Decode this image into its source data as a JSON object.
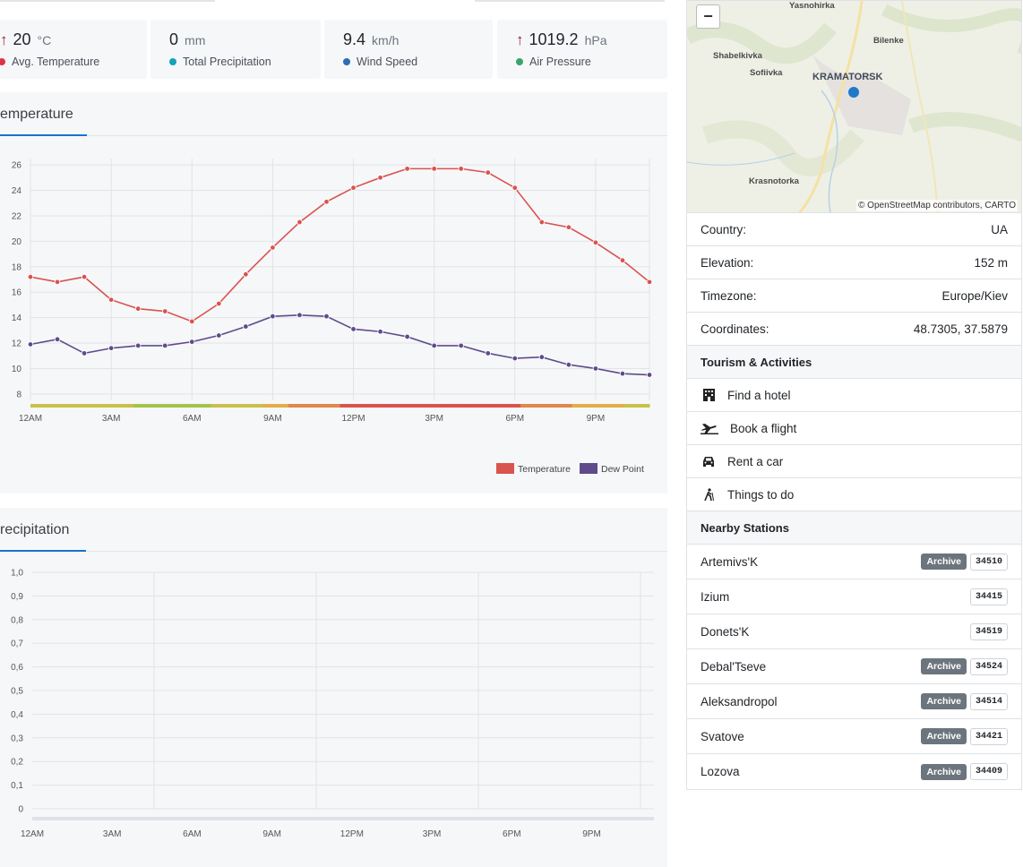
{
  "stats": [
    {
      "arrow": "↑",
      "value": "20",
      "unit": "°C",
      "label": "Avg. Temperature",
      "color": "#dc3545"
    },
    {
      "arrow": "",
      "value": "0",
      "unit": "mm",
      "label": "Total Precipitation",
      "color": "#17a2b8"
    },
    {
      "arrow": "",
      "value": "9.4",
      "unit": "km/h",
      "label": "Wind Speed",
      "color": "#2c6eb5"
    },
    {
      "arrow": "↑",
      "value": "1019.2",
      "unit": "hPa",
      "label": "Air Pressure",
      "color": "#3aa56b"
    }
  ],
  "temperature_panel": {
    "title": "emperature"
  },
  "precipitation_panel": {
    "title": "recipitation"
  },
  "chart_data": [
    {
      "type": "line",
      "title": "Temperature",
      "x": [
        "12AM",
        "1AM",
        "2AM",
        "3AM",
        "4AM",
        "5AM",
        "6AM",
        "7AM",
        "8AM",
        "9AM",
        "10AM",
        "11AM",
        "12PM",
        "1PM",
        "2PM",
        "3PM",
        "4PM",
        "5PM",
        "6PM",
        "7PM",
        "8PM",
        "9PM",
        "10PM",
        "11PM"
      ],
      "xtick_labels": [
        "12AM",
        "3AM",
        "6AM",
        "9AM",
        "12PM",
        "3PM",
        "6PM",
        "9PM"
      ],
      "yticks": [
        8,
        10,
        12,
        14,
        16,
        18,
        20,
        22,
        24,
        26
      ],
      "ylim": [
        7.5,
        26.5
      ],
      "series": [
        {
          "name": "Temperature",
          "color": "#d9534f",
          "values": [
            17.2,
            16.8,
            17.2,
            15.4,
            14.7,
            14.5,
            13.7,
            15.1,
            17.4,
            19.5,
            21.5,
            23.1,
            24.2,
            25.0,
            25.7,
            25.7,
            25.7,
            25.4,
            24.2,
            21.5,
            21.1,
            19.9,
            18.5,
            16.8
          ]
        },
        {
          "name": "Dew Point",
          "color": "#5e4b8b",
          "values": [
            11.9,
            12.3,
            11.2,
            11.6,
            11.8,
            11.8,
            12.1,
            12.6,
            13.3,
            14.1,
            14.2,
            14.1,
            13.1,
            12.9,
            12.5,
            11.8,
            11.8,
            11.2,
            10.8,
            10.9,
            10.3,
            10.0,
            9.6,
            9.5
          ]
        }
      ],
      "legend": [
        "Temperature",
        "Dew Point"
      ],
      "legend_position": "bottom-right"
    },
    {
      "type": "bar",
      "title": "Precipitation",
      "xtick_labels": [
        "12AM",
        "3AM",
        "6AM",
        "9AM",
        "12PM",
        "3PM",
        "6PM",
        "9PM"
      ],
      "yticks": [
        "0",
        "0,1",
        "0,2",
        "0,3",
        "0,4",
        "0,5",
        "0,6",
        "0,7",
        "0,8",
        "0,9",
        "1,0"
      ],
      "ylim": [
        0,
        1
      ],
      "values": [
        0,
        0,
        0,
        0,
        0,
        0,
        0,
        0,
        0,
        0,
        0,
        0,
        0,
        0,
        0,
        0,
        0,
        0,
        0,
        0,
        0,
        0,
        0,
        0
      ]
    }
  ],
  "map": {
    "zoom_out": "−",
    "places": {
      "yasnohirka": "Yasnohirka",
      "bilenke": "Bilenke",
      "shabelkivka": "Shabelkivka",
      "sofiivka": "Sofiivka",
      "kramatorsk": "KRAMATORSK",
      "krasnotorka": "Krasnotorka"
    },
    "attribution": "© OpenStreetMap contributors, CARTO"
  },
  "info": [
    {
      "key": "Country:",
      "value": "UA"
    },
    {
      "key": "Elevation:",
      "value": "152 m"
    },
    {
      "key": "Timezone:",
      "value": "Europe/Kiev"
    },
    {
      "key": "Coordinates:",
      "value": "48.7305, 37.5879"
    }
  ],
  "tourism": {
    "header": "Tourism & Activities",
    "items": [
      {
        "label": "Find a hotel",
        "icon": "hotel-icon"
      },
      {
        "label": "Book a flight",
        "icon": "plane-icon"
      },
      {
        "label": "Rent a car",
        "icon": "car-icon"
      },
      {
        "label": "Things to do",
        "icon": "hiking-icon"
      }
    ]
  },
  "stations": {
    "header": "Nearby Stations",
    "archive_label": "Archive",
    "items": [
      {
        "name": "Artemivs'K",
        "archive": true,
        "id": "34510"
      },
      {
        "name": "Izium",
        "archive": false,
        "id": "34415"
      },
      {
        "name": "Donets'K",
        "archive": false,
        "id": "34519"
      },
      {
        "name": "Debal'Tseve",
        "archive": true,
        "id": "34524"
      },
      {
        "name": "Aleksandropol",
        "archive": true,
        "id": "34514"
      },
      {
        "name": "Svatove",
        "archive": true,
        "id": "34421"
      },
      {
        "name": "Lozova",
        "archive": true,
        "id": "34409"
      }
    ]
  }
}
